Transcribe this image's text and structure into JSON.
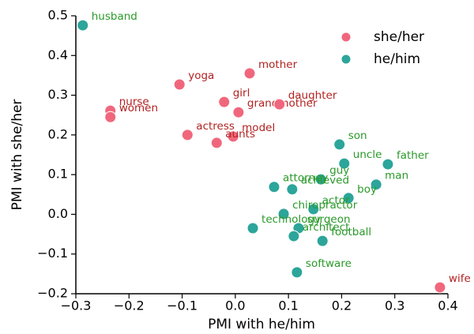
{
  "chart_data": {
    "type": "scatter",
    "xlabel": "PMI with he/him",
    "ylabel": "PMI with she/her",
    "xlim": [
      -0.3,
      0.4
    ],
    "ylim": [
      -0.2,
      0.5
    ],
    "xticks": [
      {
        "value": -0.3,
        "label": "−0.3"
      },
      {
        "value": -0.2,
        "label": "−0.2"
      },
      {
        "value": -0.1,
        "label": "−0.1"
      },
      {
        "value": 0,
        "label": "0.0"
      },
      0.1,
      0.2,
      0.3,
      0.4
    ],
    "yticks": [
      {
        "value": -0.2,
        "label": "−0.2"
      },
      {
        "value": -0.1,
        "label": "−0.1"
      },
      {
        "value": 0,
        "label": "0.0"
      },
      0.1,
      0.2,
      0.3,
      0.4,
      0.5
    ],
    "legend": "upper right",
    "series": [
      {
        "name": "she/her",
        "color": "#f0677d",
        "label_color": "#b22222",
        "labels": [
          "yoga",
          "mother",
          "nurse",
          "women",
          "girl",
          "grandmother",
          "daughter",
          "actress",
          "model",
          "aunts",
          "wife"
        ],
        "x": [
          -0.105,
          0.027,
          -0.235,
          -0.235,
          -0.021,
          0.006,
          0.083,
          -0.09,
          -0.004,
          -0.035,
          0.385
        ],
        "values": [
          0.327,
          0.355,
          0.261,
          0.245,
          0.283,
          0.257,
          0.277,
          0.2,
          0.196,
          0.18,
          -0.184
        ]
      },
      {
        "name": "he/him",
        "color": "#2ca59a",
        "label_color": "#2a9a2a",
        "labels": [
          "husband",
          "son",
          "uncle",
          "father",
          "guy",
          "man",
          "attorney",
          "achieved",
          "boy",
          "actor",
          "chiropractor",
          "technology",
          "surgeon",
          "architect",
          "football",
          "software"
        ],
        "x": [
          -0.287,
          0.196,
          0.205,
          0.287,
          0.161,
          0.265,
          0.073,
          0.107,
          0.213,
          0.147,
          0.091,
          0.033,
          0.119,
          0.11,
          0.164,
          0.116
        ],
        "values": [
          0.476,
          0.176,
          0.128,
          0.126,
          0.088,
          0.075,
          0.069,
          0.063,
          0.041,
          0.013,
          0.001,
          -0.035,
          -0.035,
          -0.055,
          -0.067,
          -0.146
        ]
      }
    ]
  }
}
